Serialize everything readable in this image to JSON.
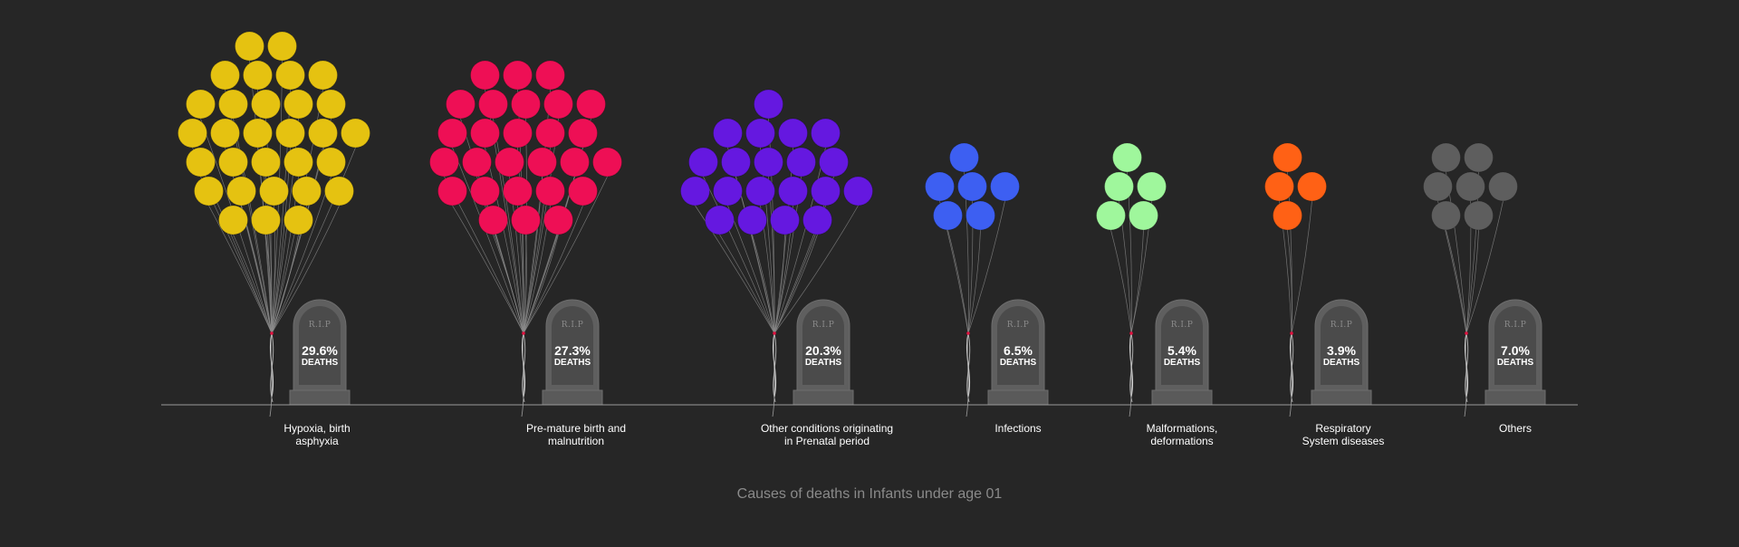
{
  "chart_data": {
    "type": "pictogram",
    "title": "Causes of deaths in Infants under age 01",
    "stone_header": "R.I.P",
    "deaths_label": "DEATHS",
    "unit": "%",
    "categories": [
      {
        "label_lines": [
          "Hypoxia, birth",
          "asphyxia"
        ],
        "value": 29.6,
        "display": "29.6%",
        "balloons": 30,
        "color": "#e5c211"
      },
      {
        "label_lines": [
          "Pre-mature birth and",
          "malnutrition"
        ],
        "value": 27.3,
        "display": "27.3%",
        "balloons": 27,
        "color": "#ee0f55"
      },
      {
        "label_lines": [
          "Other conditions originating",
          "in Prenatal period"
        ],
        "value": 20.3,
        "display": "20.3%",
        "balloons": 20,
        "color": "#6518e0"
      },
      {
        "label_lines": [
          "Infections"
        ],
        "value": 6.5,
        "display": "6.5%",
        "balloons": 6,
        "color": "#3d5ff2"
      },
      {
        "label_lines": [
          "Malformations,",
          "deformations"
        ],
        "value": 5.4,
        "display": "5.4%",
        "balloons": 5,
        "color": "#9ff79c"
      },
      {
        "label_lines": [
          "Respiratory",
          "System diseases"
        ],
        "value": 3.9,
        "display": "3.9%",
        "balloons": 4,
        "color": "#ff6115"
      },
      {
        "label_lines": [
          "Others"
        ],
        "value": 7.0,
        "display": "7.0%",
        "balloons": 7,
        "color": "#5e5e5e"
      }
    ],
    "colors": {
      "background": "#262626",
      "baseline": "#9a9a9a",
      "stone": "#5f5f5f",
      "stone_inner": "#4b4b4b",
      "string": "#8c8c8c",
      "knot": "#e0103e"
    }
  }
}
